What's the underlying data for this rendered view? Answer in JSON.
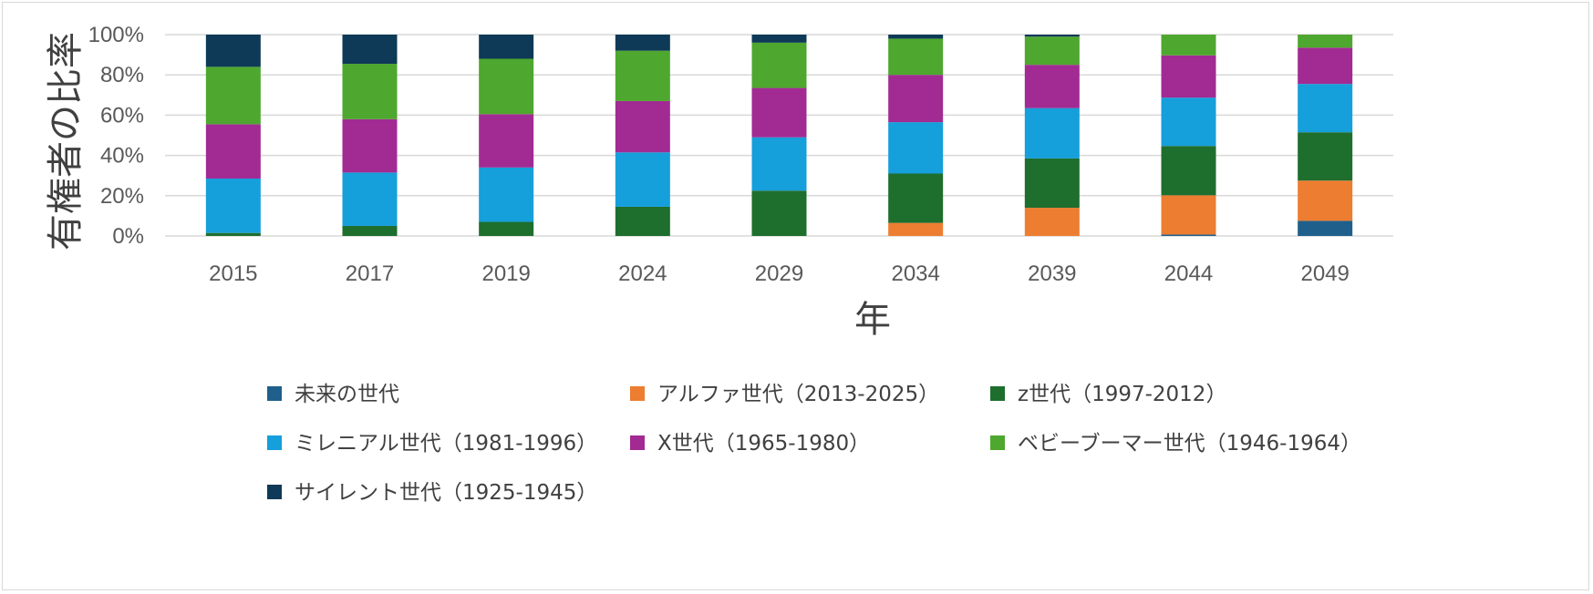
{
  "chart_data": {
    "type": "stacked-bar-100",
    "title": "",
    "xlabel": "年",
    "ylabel": "有権者の比率",
    "ylim": [
      0,
      100
    ],
    "yticks": [
      "0%",
      "20%",
      "40%",
      "60%",
      "80%",
      "100%"
    ],
    "grid": true,
    "legend_position": "bottom",
    "categories": [
      "2015",
      "2017",
      "2019",
      "2024",
      "2029",
      "2034",
      "2039",
      "2044",
      "2049"
    ],
    "series": [
      {
        "name": "未来の世代",
        "color": "#1F5F8B",
        "values": [
          0,
          0,
          0,
          0,
          0,
          0,
          0,
          0.7,
          7.5
        ]
      },
      {
        "name": "アルファ世代（2013-2025）",
        "color": "#ED7D31",
        "values": [
          0,
          0,
          0,
          0,
          0,
          6.5,
          14.0,
          19.5,
          20.0
        ]
      },
      {
        "name": "z世代（1997-2012）",
        "color": "#1E6E2E",
        "values": [
          1.5,
          5.0,
          7.0,
          14.5,
          22.5,
          24.5,
          24.5,
          24.5,
          24.0
        ]
      },
      {
        "name": "ミレニアル世代（1981-1996）",
        "color": "#159FDB",
        "values": [
          27.0,
          26.5,
          27.0,
          27.0,
          26.5,
          25.5,
          25.0,
          24.0,
          24.0
        ]
      },
      {
        "name": "X世代（1965-1980）",
        "color": "#A12B93",
        "values": [
          27.0,
          26.5,
          26.5,
          25.5,
          24.5,
          23.5,
          21.5,
          21.0,
          18.0
        ]
      },
      {
        "name": "ベビーブーマー世代（1946-1964）",
        "color": "#4EA72E",
        "values": [
          28.5,
          27.5,
          27.5,
          25.0,
          22.5,
          18.0,
          14.0,
          10.3,
          6.5
        ]
      },
      {
        "name": "サイレント世代（1925-1945）",
        "color": "#0E3A57",
        "values": [
          16.0,
          14.5,
          12.0,
          8.0,
          4.0,
          2.0,
          1.0,
          0,
          0
        ]
      }
    ]
  }
}
